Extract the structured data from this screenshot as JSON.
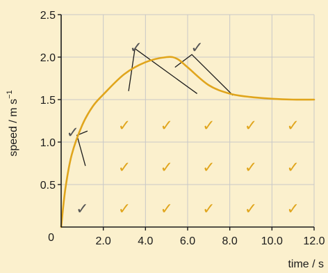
{
  "chart_data": {
    "type": "line",
    "xlabel": "time / s",
    "ylabel_main": "speed / m s",
    "ylabel_sup": "−1",
    "xlim": [
      0,
      12
    ],
    "ylim": [
      0,
      2.5
    ],
    "x_ticks": [
      2,
      4,
      6,
      8,
      10,
      12
    ],
    "x_tick_labels": [
      "2.0",
      "4.0",
      "6.0",
      "8.0",
      "10.0",
      "12.0"
    ],
    "y_ticks": [
      0.5,
      1.0,
      1.5,
      2.0,
      2.5
    ],
    "y_tick_labels": [
      "0.5",
      "1.0",
      "1.5",
      "2.0",
      "2.5"
    ],
    "origin_label": "0",
    "grid": true,
    "series": [
      {
        "color": "#e0a51c",
        "x": [
          0,
          0.2,
          0.5,
          1,
          1.5,
          2,
          3,
          4,
          5,
          5.5,
          6,
          7,
          8,
          9,
          10,
          11,
          12
        ],
        "y": [
          0,
          0.45,
          0.85,
          1.2,
          1.42,
          1.56,
          1.8,
          1.94,
          2.0,
          1.98,
          1.88,
          1.67,
          1.57,
          1.53,
          1.51,
          1.5,
          1.5
        ]
      }
    ],
    "check_marks": [
      {
        "x": 0.55,
        "y": 1.12,
        "color": "#555555"
      },
      {
        "x": 3.55,
        "y": 2.12,
        "color": "#555555"
      },
      {
        "x": 6.45,
        "y": 2.12,
        "color": "#555555"
      },
      {
        "x": 1.0,
        "y": 0.22,
        "color": "#555555"
      },
      {
        "x": 3.0,
        "y": 1.2,
        "color": "#e0a51c"
      },
      {
        "x": 5.0,
        "y": 1.2,
        "color": "#e0a51c"
      },
      {
        "x": 7.0,
        "y": 1.2,
        "color": "#e0a51c"
      },
      {
        "x": 9.0,
        "y": 1.2,
        "color": "#e0a51c"
      },
      {
        "x": 11.0,
        "y": 1.2,
        "color": "#e0a51c"
      },
      {
        "x": 3.0,
        "y": 0.71,
        "color": "#e0a51c"
      },
      {
        "x": 5.0,
        "y": 0.71,
        "color": "#e0a51c"
      },
      {
        "x": 7.0,
        "y": 0.71,
        "color": "#e0a51c"
      },
      {
        "x": 9.0,
        "y": 0.71,
        "color": "#e0a51c"
      },
      {
        "x": 11.0,
        "y": 0.71,
        "color": "#e0a51c"
      },
      {
        "x": 3.0,
        "y": 0.22,
        "color": "#e0a51c"
      },
      {
        "x": 5.0,
        "y": 0.22,
        "color": "#e0a51c"
      },
      {
        "x": 7.0,
        "y": 0.22,
        "color": "#e0a51c"
      },
      {
        "x": 9.0,
        "y": 0.22,
        "color": "#e0a51c"
      },
      {
        "x": 11.0,
        "y": 0.22,
        "color": "#e0a51c"
      }
    ],
    "annotation_lines": [
      [
        [
          1.25,
          1.13
        ],
        [
          0.75,
          1.08
        ],
        [
          1.15,
          0.72
        ]
      ],
      [
        [
          3.2,
          1.6
        ],
        [
          3.5,
          2.1
        ],
        [
          6.45,
          1.57
        ]
      ],
      [
        [
          5.4,
          1.88
        ],
        [
          6.2,
          2.03
        ],
        [
          8.15,
          1.55
        ]
      ]
    ]
  },
  "colors": {
    "background": "#fbf0cd",
    "grid": "#c8c8c8",
    "axis": "#1a1a1a",
    "curve": "#e0a51c",
    "annotation": "#1a1a1a"
  }
}
